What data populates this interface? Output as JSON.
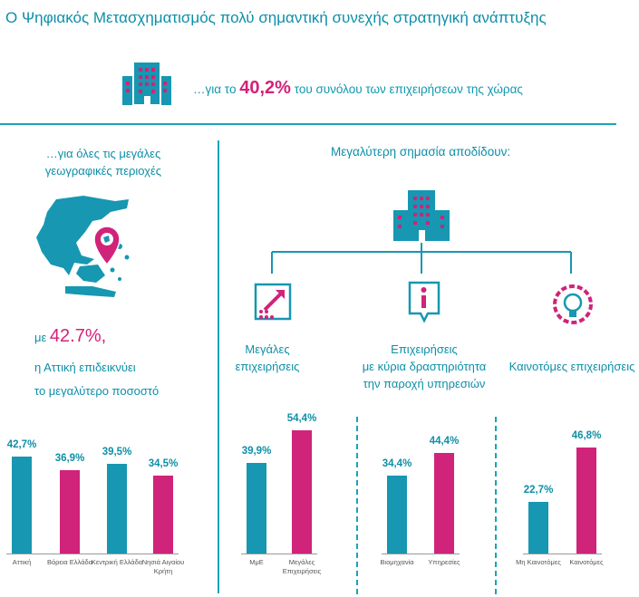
{
  "title": "Ο Ψηφιακός Μετασχηματισμός πολύ σημαντική συνεχής στρατηγική ανάπτυξης",
  "hero": {
    "pre": "…για το ",
    "value": "40,2%",
    "post": " του συνόλου των επιχειρήσεων  της χώρας",
    "icon": "building-icon"
  },
  "left": {
    "heading_1": "…για όλες τις μεγάλες",
    "heading_2": "γεωγραφικές περιοχές",
    "stat_pre": "με ",
    "stat_value": "42.7%,",
    "stat_line_1": "η  Αττική επιδεικνύει",
    "stat_line_2": "το μεγαλύτερο ποσοστό",
    "map_icon": "greece-map-icon"
  },
  "right": {
    "heading": "Μεγαλύτερη σημασία αποδίδουν:",
    "items": [
      {
        "line1": "Μεγάλες",
        "line2": "επιχειρήσεις",
        "icon": "growth-arrow-icon"
      },
      {
        "line1": "Επιχειρήσεις",
        "line2": "με κύρια δραστηριότητα",
        "line3": "την παροχή υπηρεσιών",
        "icon": "info-icon"
      },
      {
        "line1": "Καινοτόμες επιχειρήσεις",
        "icon": "lightbulb-gear-icon"
      }
    ]
  },
  "colors": {
    "teal": "#1797b1",
    "pink": "#d0237a"
  },
  "chart_data": [
    {
      "type": "bar",
      "categories": [
        "Αττική",
        "Βόρεια Ελλάδα",
        "Κεντρική Ελλάδα",
        "Νησιά Αιγαίου Κρήτη"
      ],
      "values": [
        42.7,
        36.9,
        39.5,
        34.5
      ],
      "labels": [
        "42,7%",
        "36,9%",
        "39,5%",
        "34,5%"
      ],
      "colors": [
        "teal",
        "pink",
        "teal",
        "pink"
      ],
      "ylim": [
        0,
        60
      ]
    },
    {
      "type": "bar",
      "categories": [
        "ΜμΕ",
        "Μεγάλες Επιχειρήσεις"
      ],
      "values": [
        39.9,
        54.4
      ],
      "labels": [
        "39,9%",
        "54,4%"
      ],
      "colors": [
        "teal",
        "pink"
      ],
      "ylim": [
        0,
        60
      ]
    },
    {
      "type": "bar",
      "categories": [
        "Βιομηχανία",
        "Υπηρεσίες"
      ],
      "values": [
        34.4,
        44.4
      ],
      "labels": [
        "34,4%",
        "44,4%"
      ],
      "colors": [
        "teal",
        "pink"
      ],
      "ylim": [
        0,
        60
      ]
    },
    {
      "type": "bar",
      "categories": [
        "Μη Καινοτόμες",
        "Καινοτόμες"
      ],
      "values": [
        22.7,
        46.8
      ],
      "labels": [
        "22,7%",
        "46,8%"
      ],
      "colors": [
        "teal",
        "pink"
      ],
      "ylim": [
        0,
        60
      ]
    }
  ]
}
